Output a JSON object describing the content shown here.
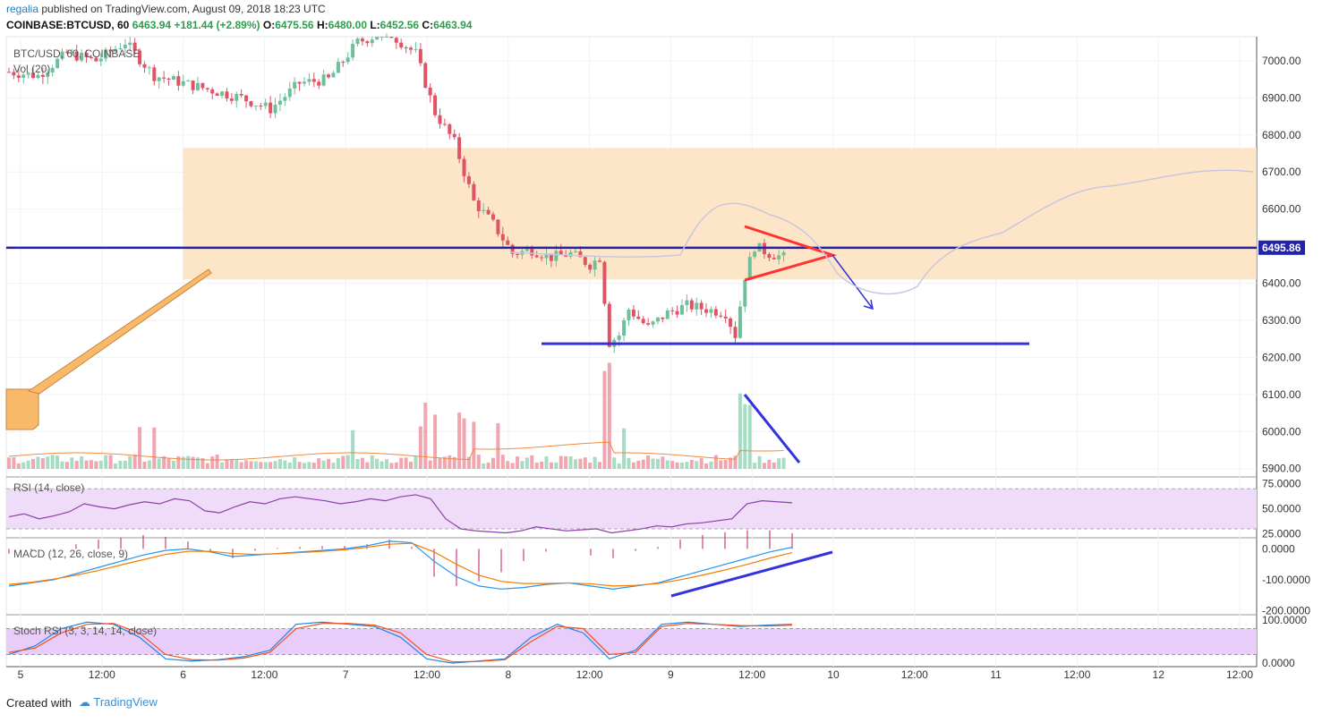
{
  "header": {
    "user": "regalia",
    "published": "published on TradingView.com, August 09, 2018 18:23 UTC",
    "symbol": "COINBASE:BTCUSD, 60",
    "last": "6463.94",
    "change": "+181.44 (+2.89%)",
    "open_label": "O:",
    "open": "6475.56",
    "high_label": "H:",
    "high": "6480.00",
    "low_label": "L:",
    "low": "6452.56",
    "close_label": "C:",
    "close": "6463.94"
  },
  "footer": {
    "created_with": "Created with",
    "brand": "TradingView"
  },
  "colors": {
    "up": "#6fbf9b",
    "down": "#e05266",
    "vol_up": "#a6dcc4",
    "vol_down": "#f0a5af",
    "zone": "#fde2bd",
    "level": "#2222aa",
    "drawn_blue": "#3333dd",
    "drawn_red": "#ff3333",
    "rsi_band": "#efdcf9",
    "stoch_band": "#e8ccf9",
    "macd_hist": "#c2185b"
  },
  "chart_data": [
    {
      "type": "candlestick",
      "pane": "price",
      "legend": "BTC/USD, 60, COINBASE",
      "volume_legend": "Vol (20)",
      "y_ticks": [
        "7000.00",
        "6900.00",
        "6800.00",
        "6700.00",
        "6600.00",
        "6500.00",
        "6400.00",
        "6300.00",
        "6200.00",
        "6100.00",
        "6000.00",
        "5900.00"
      ],
      "ylim": [
        5880,
        7065
      ],
      "x_ticks": [
        "5",
        "12:00",
        "6",
        "12:00",
        "7",
        "12:00",
        "8",
        "12:00",
        "9",
        "12:00",
        "10",
        "12:00",
        "11",
        "12:00",
        "12",
        "12:00"
      ],
      "last_price_label": "6495.86",
      "horizontal_level": 6495.86,
      "resistance_zone": [
        6410,
        6765
      ],
      "support_line": 6237,
      "candles_close_anchors": [
        {
          "t": 0,
          "c": 6970
        },
        {
          "t": 6,
          "c": 6960
        },
        {
          "t": 12,
          "c": 7020
        },
        {
          "t": 18,
          "c": 7000
        },
        {
          "t": 24,
          "c": 7050
        },
        {
          "t": 30,
          "c": 6960
        },
        {
          "t": 36,
          "c": 6940
        },
        {
          "t": 42,
          "c": 6920
        },
        {
          "t": 48,
          "c": 6900
        },
        {
          "t": 54,
          "c": 6870
        },
        {
          "t": 60,
          "c": 6940
        },
        {
          "t": 66,
          "c": 6950
        },
        {
          "t": 72,
          "c": 7050
        },
        {
          "t": 78,
          "c": 7080
        },
        {
          "t": 84,
          "c": 7020
        },
        {
          "t": 88,
          "c": 6860
        },
        {
          "t": 92,
          "c": 6780
        },
        {
          "t": 96,
          "c": 6620
        },
        {
          "t": 100,
          "c": 6560
        },
        {
          "t": 104,
          "c": 6480
        },
        {
          "t": 108,
          "c": 6490
        },
        {
          "t": 112,
          "c": 6470
        },
        {
          "t": 116,
          "c": 6480
        },
        {
          "t": 120,
          "c": 6450
        },
        {
          "t": 122,
          "c": 6470
        },
        {
          "t": 124,
          "c": 6240
        },
        {
          "t": 126,
          "c": 6260
        },
        {
          "t": 128,
          "c": 6330
        },
        {
          "t": 132,
          "c": 6280
        },
        {
          "t": 136,
          "c": 6320
        },
        {
          "t": 140,
          "c": 6340
        },
        {
          "t": 144,
          "c": 6330
        },
        {
          "t": 148,
          "c": 6320
        },
        {
          "t": 150,
          "c": 6260
        },
        {
          "t": 152,
          "c": 6420
        },
        {
          "t": 154,
          "c": 6500
        },
        {
          "t": 157,
          "c": 6480
        },
        {
          "t": 160,
          "c": 6470
        }
      ]
    },
    {
      "type": "line",
      "pane": "rsi",
      "legend": "RSI (14, close)",
      "y_ticks": [
        "75.0000",
        "50.0000",
        "25.0000"
      ],
      "ylim": [
        22,
        80
      ],
      "band": [
        30,
        70
      ],
      "series": [
        {
          "values": [
            42,
            45,
            40,
            43,
            47,
            55,
            52,
            50,
            54,
            57,
            55,
            60,
            58,
            48,
            46,
            52,
            57,
            55,
            60,
            62,
            60,
            58,
            55,
            57,
            60,
            58,
            62,
            64,
            60,
            40,
            30,
            28,
            27,
            26,
            28,
            32,
            30,
            28,
            29,
            30,
            26,
            28,
            30,
            33,
            32,
            35,
            36,
            38,
            40,
            55,
            58,
            57,
            56
          ]
        }
      ]
    },
    {
      "type": "line",
      "pane": "macd",
      "legend": "MACD (12, 26, close, 9)",
      "y_ticks": [
        "0.0000",
        "-100.0000",
        "-200.0000"
      ],
      "ylim": [
        -210,
        30
      ],
      "series": [
        {
          "values": [
            -120,
            -110,
            -100,
            -80,
            -60,
            -40,
            -20,
            -5,
            0,
            -10,
            -25,
            -20,
            -15,
            -10,
            -5,
            0,
            10,
            25,
            20,
            -40,
            -90,
            -120,
            -130,
            -125,
            -115,
            -110,
            -120,
            -130,
            -120,
            -110,
            -90,
            -70,
            -50,
            -30,
            -10,
            5
          ]
        },
        {
          "values": [
            -115,
            -108,
            -98,
            -85,
            -70,
            -52,
            -35,
            -18,
            -8,
            -8,
            -15,
            -18,
            -16,
            -12,
            -8,
            -3,
            5,
            15,
            18,
            -10,
            -50,
            -85,
            -105,
            -112,
            -112,
            -110,
            -113,
            -120,
            -118,
            -112,
            -100,
            -85,
            -68,
            -50,
            -30,
            -12
          ]
        }
      ]
    },
    {
      "type": "line",
      "pane": "stoch_rsi",
      "legend": "Stoch RSI (3, 3, 14, 14, close)",
      "y_ticks": [
        "100.0000",
        "0.0000"
      ],
      "ylim": [
        -8,
        108
      ],
      "band": [
        20,
        80
      ],
      "series": [
        {
          "values": [
            20,
            40,
            80,
            95,
            90,
            60,
            10,
            5,
            8,
            15,
            30,
            90,
            95,
            90,
            85,
            60,
            10,
            0,
            5,
            10,
            60,
            90,
            70,
            10,
            30,
            90,
            95,
            90,
            85,
            88,
            90
          ]
        },
        {
          "values": [
            25,
            35,
            70,
            90,
            92,
            70,
            20,
            8,
            7,
            12,
            25,
            80,
            92,
            92,
            88,
            70,
            20,
            3,
            4,
            8,
            50,
            85,
            80,
            20,
            25,
            85,
            92,
            90,
            87,
            86,
            88
          ]
        }
      ]
    }
  ]
}
